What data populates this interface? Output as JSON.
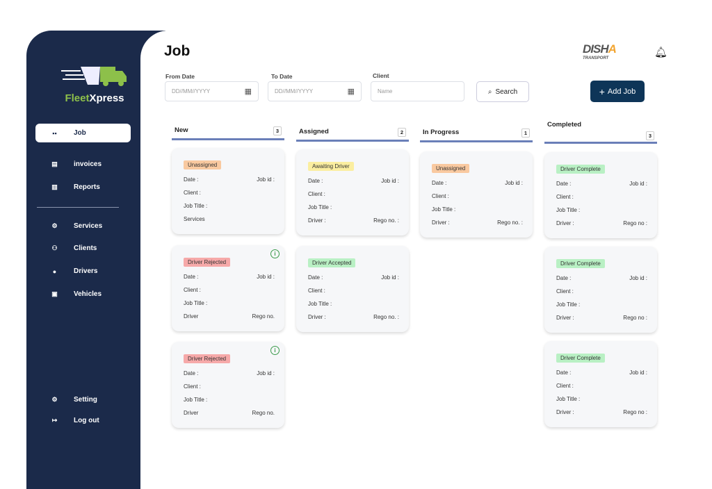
{
  "sidebar": {
    "brand": {
      "part1": "Fleet",
      "part2": "Xpress"
    },
    "items": [
      {
        "label": "Job",
        "icon": "grid-icon"
      },
      {
        "label": "invoices",
        "icon": "invoice-icon"
      },
      {
        "label": "Reports",
        "icon": "report-icon"
      },
      {
        "label": "Services",
        "icon": "gears-icon"
      },
      {
        "label": "Clients",
        "icon": "clients-icon"
      },
      {
        "label": "Drivers",
        "icon": "driver-icon"
      },
      {
        "label": "Vehicles",
        "icon": "vehicle-icon"
      },
      {
        "label": "Setting",
        "icon": "gear-icon"
      },
      {
        "label": "Log out",
        "icon": "logout-icon"
      }
    ]
  },
  "header": {
    "title": "Job",
    "company_logo": "DISHA TRANSPORT"
  },
  "filters": {
    "from_label": "From Date",
    "from_placeholder": "DD//MM//YYYY",
    "to_label": "To Date",
    "to_placeholder": "DD//MM//YYYY",
    "client_label": "Client",
    "client_placeholder": "Name",
    "search_label": "Search",
    "add_label": "Add Job"
  },
  "columns": [
    {
      "title": "New",
      "count": "3",
      "cards": [
        {
          "status": "Unassigned",
          "color": "#f9c9a0",
          "info": false,
          "rows": [
            [
              "Date :",
              "Job id :"
            ],
            [
              "Client :",
              ""
            ],
            [
              "Job Title :",
              ""
            ],
            [
              "Services",
              ""
            ]
          ]
        },
        {
          "status": "Driver Rejected",
          "color": "#f6a9a9",
          "info": true,
          "rows": [
            [
              "Date :",
              "Job id :"
            ],
            [
              "Client :",
              ""
            ],
            [
              "Job Title :",
              ""
            ],
            [
              "Driver",
              "Rego no."
            ]
          ]
        },
        {
          "status": "Driver Rejected",
          "color": "#f6a9a9",
          "info": true,
          "rows": [
            [
              "Date :",
              "Job id :"
            ],
            [
              "Client :",
              ""
            ],
            [
              "Job Title :",
              ""
            ],
            [
              "Driver",
              "Rego no."
            ]
          ]
        }
      ]
    },
    {
      "title": "Assigned",
      "count": "2",
      "cards": [
        {
          "status": "Awaiting Driver",
          "color": "#fbeea0",
          "info": false,
          "rows": [
            [
              "Date :",
              "Job id :"
            ],
            [
              "Client :",
              ""
            ],
            [
              "Job Title :",
              ""
            ],
            [
              "Driver :",
              "Rego no. :"
            ]
          ]
        },
        {
          "status": "Driver Accepted",
          "color": "#b9f0c4",
          "info": false,
          "rows": [
            [
              "Date :",
              "Job id :"
            ],
            [
              "Client :",
              ""
            ],
            [
              "Job Title :",
              ""
            ],
            [
              "Driver :",
              "Rego no. :"
            ]
          ]
        }
      ]
    },
    {
      "title": "In Progress",
      "count": "1",
      "cards": [
        {
          "status": "Unassigned",
          "color": "#f9c9a0",
          "info": false,
          "rows": [
            [
              "Date :",
              "Job id :"
            ],
            [
              "Client :",
              ""
            ],
            [
              "Job Title :",
              ""
            ],
            [
              "Driver :",
              "Rego no. :"
            ]
          ]
        }
      ]
    },
    {
      "title": "Completed",
      "count": "3",
      "cards": [
        {
          "status": "Driver Complete",
          "color": "#b9f0c4",
          "info": false,
          "rows": [
            [
              "Date :",
              "Job id :"
            ],
            [
              "Client :",
              ""
            ],
            [
              "Job Title :",
              ""
            ],
            [
              "Driver :",
              "Rego no :"
            ]
          ]
        },
        {
          "status": "Driver Complete",
          "color": "#b9f0c4",
          "info": false,
          "rows": [
            [
              "Date :",
              "Job id :"
            ],
            [
              "Client :",
              ""
            ],
            [
              "Job Title :",
              ""
            ],
            [
              "Driver :",
              "Rego no :"
            ]
          ]
        },
        {
          "status": "Driver Complete",
          "color": "#b9f0c4",
          "info": false,
          "rows": [
            [
              "Date :",
              "Job id :"
            ],
            [
              "Client :",
              ""
            ],
            [
              "Job Title :",
              ""
            ],
            [
              "Driver :",
              "Rego no :"
            ]
          ]
        }
      ]
    }
  ]
}
